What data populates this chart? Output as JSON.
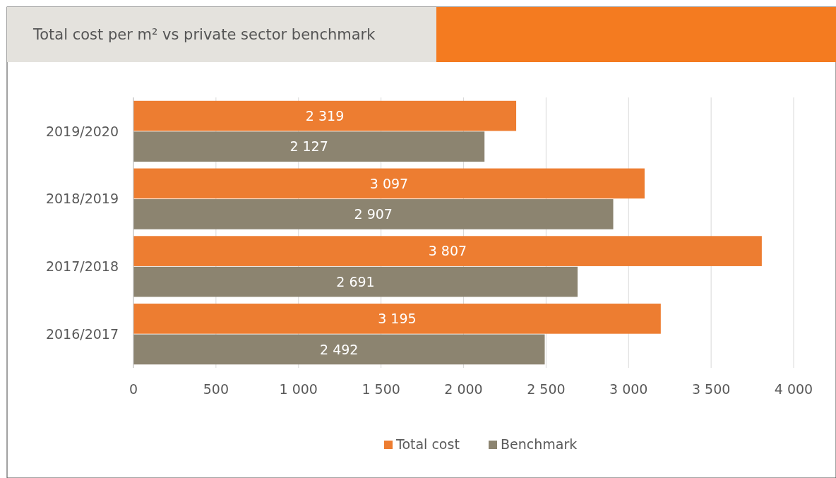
{
  "chart_data": {
    "type": "bar",
    "orientation": "horizontal",
    "title": "Total cost per m² vs private sector benchmark",
    "categories": [
      "2019/2020",
      "2018/2019",
      "2017/2018",
      "2016/2017"
    ],
    "series": [
      {
        "name": "Total cost",
        "color": "#ed7d31",
        "values": [
          2319,
          3097,
          3807,
          3195
        ],
        "value_labels": [
          "2 319",
          "3 097",
          "3 807",
          "3 195"
        ]
      },
      {
        "name": "Benchmark",
        "color": "#8c8470",
        "values": [
          2127,
          2907,
          2691,
          2492
        ],
        "value_labels": [
          "2 127",
          "2 907",
          "2 691",
          "2 492"
        ]
      }
    ],
    "xlim": [
      0,
      4000
    ],
    "xticks": [
      0,
      500,
      {
        "value": 1000,
        "label": "1 000"
      },
      {
        "value": 1500,
        "label": "1 500"
      },
      {
        "value": 2000,
        "label": "2 000"
      },
      {
        "value": 2500,
        "label": "2 500"
      },
      {
        "value": 3000,
        "label": "3 000"
      },
      {
        "value": 3500,
        "label": "3 500"
      },
      {
        "value": 4000,
        "label": "4 000"
      }
    ],
    "grid": "x",
    "legend": "bottom"
  }
}
